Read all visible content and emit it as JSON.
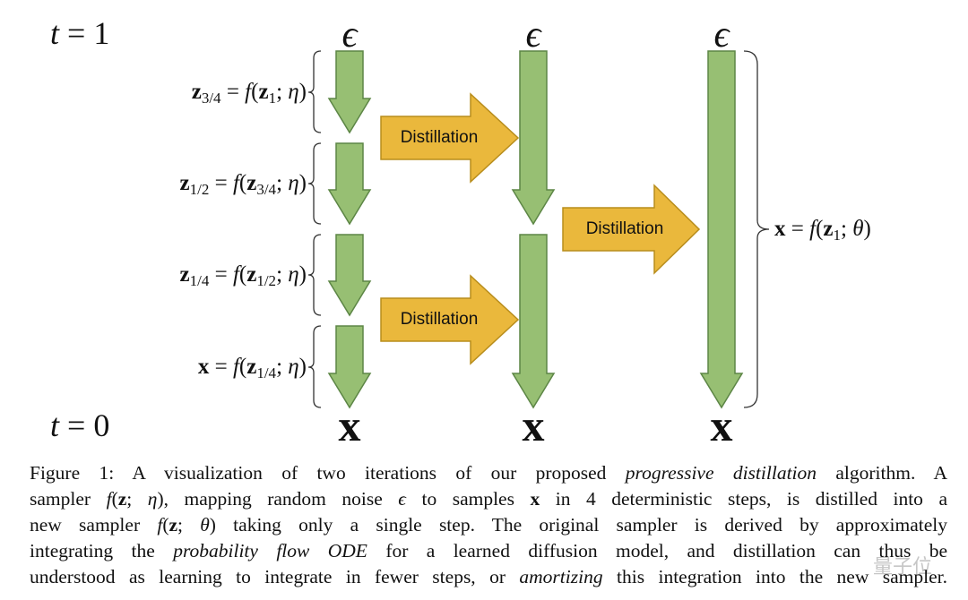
{
  "diagram": {
    "time_top": [
      {
        "i": "t"
      },
      {
        "t": " = 1"
      }
    ],
    "time_bottom": [
      {
        "i": "t"
      },
      {
        "t": " = 0"
      }
    ],
    "noise_labels": [
      "ϵ",
      "ϵ",
      "ϵ"
    ],
    "sample_labels": [
      "x",
      "x",
      "x"
    ],
    "steps": [
      [
        {
          "b": "z"
        },
        {
          "s": "3/4"
        },
        {
          "t": " = "
        },
        {
          "i": "f"
        },
        {
          "t": "("
        },
        {
          "b": "z"
        },
        {
          "s": "1"
        },
        {
          "t": "; "
        },
        {
          "i": "η"
        },
        {
          "t": ")"
        }
      ],
      [
        {
          "b": "z"
        },
        {
          "s": "1/2"
        },
        {
          "t": " = "
        },
        {
          "i": "f"
        },
        {
          "t": "("
        },
        {
          "b": "z"
        },
        {
          "s": "3/4"
        },
        {
          "t": "; "
        },
        {
          "i": "η"
        },
        {
          "t": ")"
        }
      ],
      [
        {
          "b": "z"
        },
        {
          "s": "1/4"
        },
        {
          "t": " = "
        },
        {
          "i": "f"
        },
        {
          "t": "("
        },
        {
          "b": "z"
        },
        {
          "s": "1/2"
        },
        {
          "t": "; "
        },
        {
          "i": "η"
        },
        {
          "t": ")"
        }
      ],
      [
        {
          "b": "x"
        },
        {
          "t": " = "
        },
        {
          "i": "f"
        },
        {
          "t": "("
        },
        {
          "b": "z"
        },
        {
          "s": "1/4"
        },
        {
          "t": "; "
        },
        {
          "i": "η"
        },
        {
          "t": ")"
        }
      ]
    ],
    "single_step": [
      {
        "b": "x"
      },
      {
        "t": " = "
      },
      {
        "i": "f"
      },
      {
        "t": "("
      },
      {
        "b": "z"
      },
      {
        "s": "1"
      },
      {
        "t": "; "
      },
      {
        "i": "θ"
      },
      {
        "t": ")"
      }
    ],
    "distillation_labels": [
      "Distillation",
      "Distillation",
      "Distillation"
    ]
  },
  "caption": {
    "lines": [
      [
        {
          "t": "Figure 1: A visualization of two iterations of our proposed "
        },
        {
          "i": "progressive distillation"
        },
        {
          "t": " algorithm. A"
        }
      ],
      [
        {
          "t": "sampler "
        },
        {
          "i": "f"
        },
        {
          "t": "("
        },
        {
          "b": "z"
        },
        {
          "t": "; "
        },
        {
          "i": "η"
        },
        {
          "t": "), mapping random noise "
        },
        {
          "i": "ϵ"
        },
        {
          "t": " to samples "
        },
        {
          "b": "x"
        },
        {
          "t": " in 4 deterministic steps, is distilled into a"
        }
      ],
      [
        {
          "t": "new sampler "
        },
        {
          "i": "f"
        },
        {
          "t": "("
        },
        {
          "b": "z"
        },
        {
          "t": "; "
        },
        {
          "i": "θ"
        },
        {
          "t": ") taking only a single step. The original sampler is derived by approximately"
        }
      ],
      [
        {
          "t": "integrating the "
        },
        {
          "i": "probability flow ODE"
        },
        {
          "t": " for a learned diffusion model, and distillation can thus be"
        }
      ],
      [
        {
          "t": "understood as learning to integrate in fewer steps, or "
        },
        {
          "i": "amortizing"
        },
        {
          "t": " this integration into the new sampler."
        }
      ]
    ]
  },
  "watermark": "量子位"
}
